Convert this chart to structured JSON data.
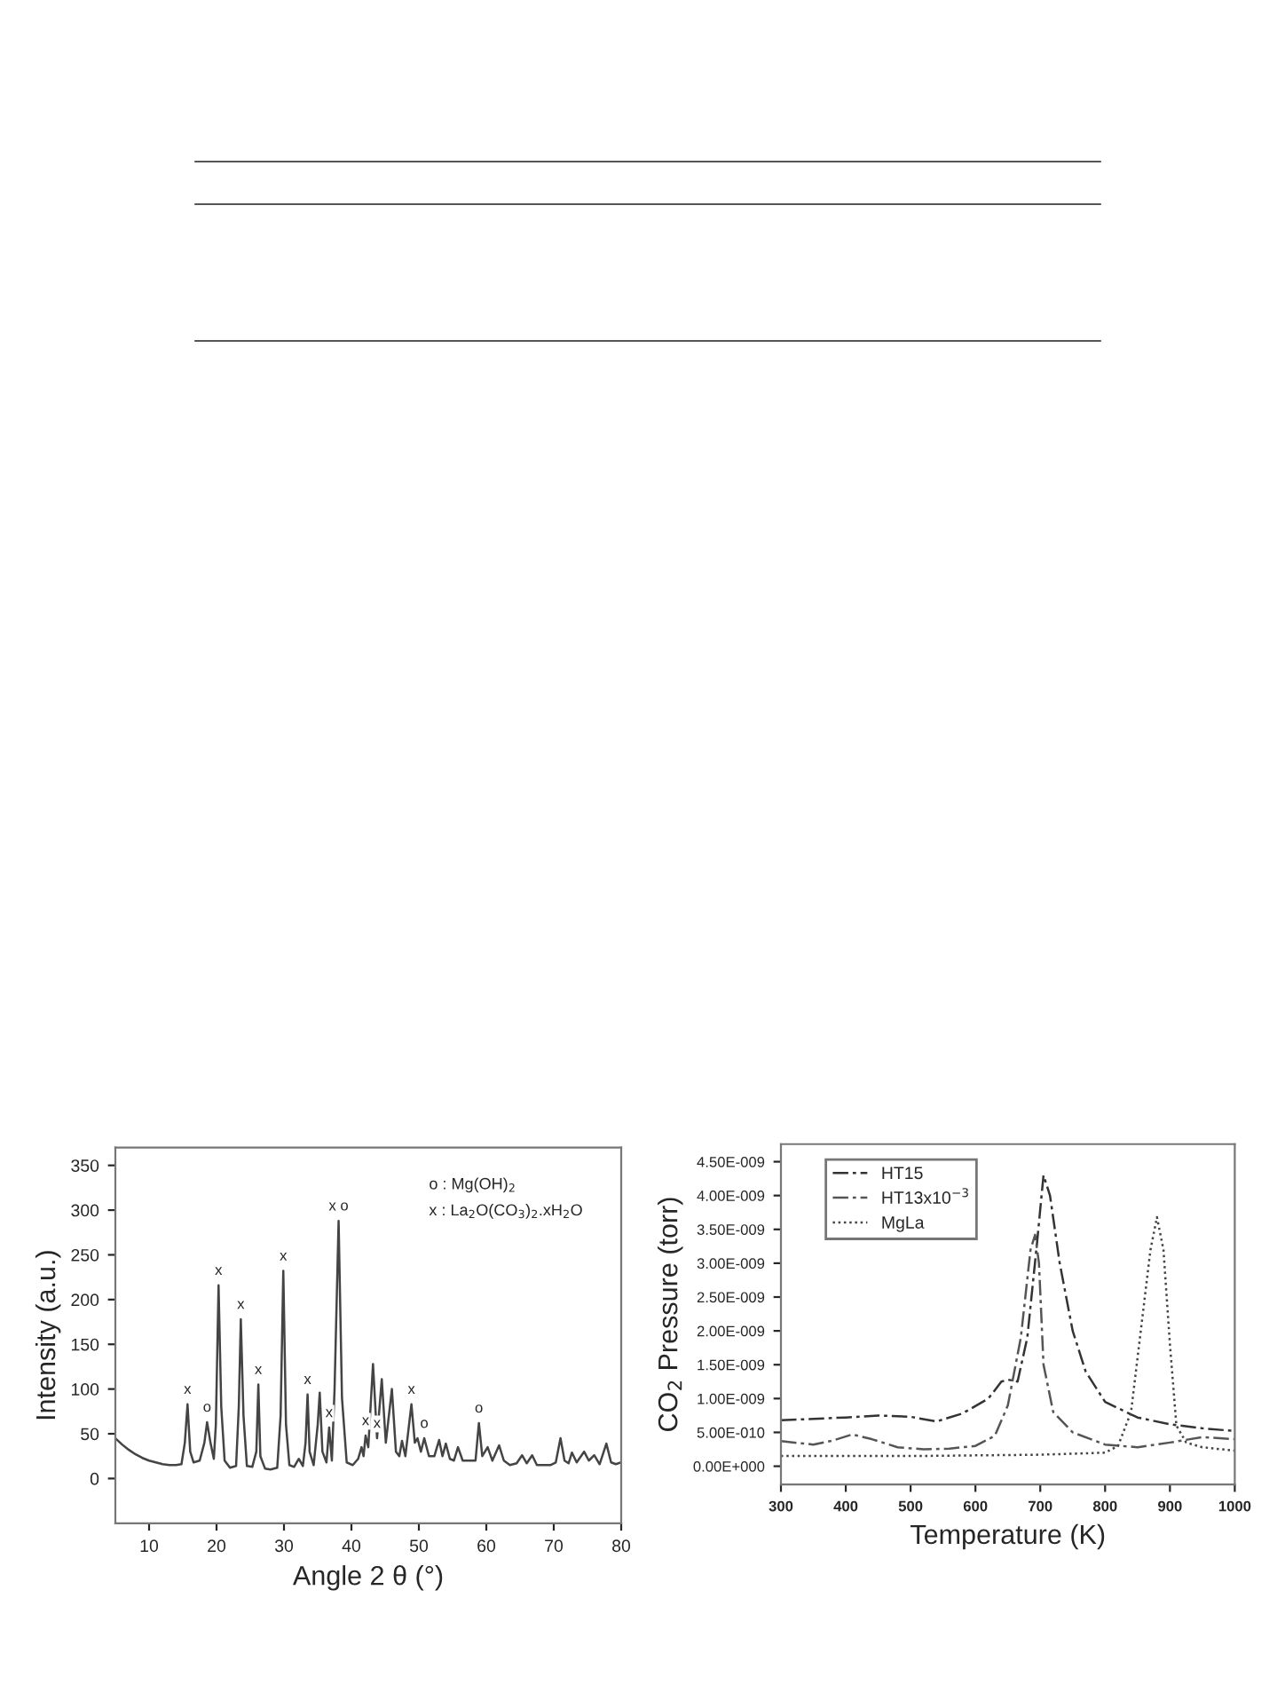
{
  "chart_data": [
    {
      "type": "line",
      "xlabel": "Angle 2 θ (°)",
      "ylabel": "Intensity (a.u.)",
      "xlim": [
        5,
        80
      ],
      "ylim": [
        -50,
        370
      ],
      "xticks": [
        10,
        20,
        30,
        40,
        50,
        60,
        70,
        80
      ],
      "yticks": [
        0,
        50,
        100,
        150,
        200,
        250,
        300,
        350
      ],
      "grid": false,
      "marker": "none",
      "annotations": [
        "o : Mg(OH)$_{2}$",
        "x : La$_{2}$O(CO$_{3}$)$_{2}$.xH$_{2}$O",
        {
          "text": "x",
          "x": 15.7,
          "y": 83
        },
        {
          "text": "o",
          "x": 18.6,
          "y": 63
        },
        {
          "text": "x",
          "x": 20.3,
          "y": 216
        },
        {
          "text": "x",
          "x": 23.6,
          "y": 178
        },
        {
          "text": "x",
          "x": 26.2,
          "y": 105
        },
        {
          "text": "x",
          "x": 29.9,
          "y": 232
        },
        {
          "text": "x",
          "x": 33.5,
          "y": 94
        },
        {
          "text": "x",
          "x": 36.7,
          "y": 57
        },
        {
          "text": "x o",
          "x": 38.1,
          "y": 288
        },
        {
          "text": "x",
          "x": 42.1,
          "y": 48
        },
        {
          "text": "x",
          "x": 43.8,
          "y": 45
        },
        {
          "text": "x",
          "x": 48.9,
          "y": 83
        },
        {
          "text": "o",
          "x": 50.8,
          "y": 45
        },
        {
          "text": "o",
          "x": 58.9,
          "y": 62
        }
      ],
      "series": [
        {
          "color": "#444444",
          "line_style": "solid",
          "x": [
            5,
            6,
            7,
            8,
            9,
            10,
            11,
            12,
            13,
            14,
            14.8,
            15.3,
            15.7,
            16.1,
            16.6,
            17.5,
            18.2,
            18.6,
            19.1,
            19.6,
            19.9,
            20.3,
            20.7,
            21.2,
            22,
            22.9,
            23.3,
            23.6,
            24,
            24.5,
            25.3,
            25.9,
            26.2,
            26.5,
            27.2,
            28,
            29,
            29.5,
            29.9,
            30.3,
            30.8,
            31.5,
            32.2,
            32.8,
            33.2,
            33.5,
            33.8,
            34.4,
            35,
            35.3,
            35.7,
            36.3,
            36.7,
            37.1,
            37.5,
            38.1,
            38.6,
            39.3,
            40.2,
            41,
            41.5,
            41.8,
            42.1,
            42.5,
            43.2,
            43.8,
            44.5,
            45.1,
            46,
            46.6,
            47.1,
            47.5,
            48,
            48.9,
            49.4,
            49.8,
            50.3,
            50.8,
            51.5,
            52.3,
            53,
            53.5,
            54,
            54.6,
            55.2,
            55.8,
            56.5,
            57.5,
            58.4,
            58.9,
            59.4,
            60.2,
            60.9,
            61.9,
            62.6,
            63.5,
            64.5,
            65.3,
            66,
            66.8,
            67.5,
            68.5,
            69.5,
            70.3,
            71,
            71.6,
            72.2,
            72.7,
            73.4,
            74.5,
            75.2,
            76,
            76.8,
            77.8,
            78.5,
            79.2,
            80
          ],
          "values": [
            45,
            38,
            32,
            27,
            23,
            20,
            18,
            16,
            15,
            15,
            16,
            40,
            83,
            30,
            18,
            20,
            40,
            63,
            40,
            22,
            60,
            216,
            80,
            20,
            12,
            14,
            80,
            178,
            70,
            14,
            13,
            30,
            105,
            25,
            11,
            10,
            12,
            70,
            232,
            60,
            15,
            13,
            22,
            14,
            40,
            94,
            30,
            15,
            60,
            96,
            30,
            18,
            57,
            20,
            100,
            288,
            90,
            18,
            15,
            22,
            35,
            25,
            48,
            35,
            128,
            45,
            111,
            40,
            100,
            30,
            25,
            42,
            25,
            83,
            40,
            45,
            30,
            45,
            25,
            25,
            43,
            25,
            39,
            22,
            20,
            35,
            20,
            20,
            20,
            62,
            25,
            35,
            20,
            37,
            20,
            15,
            17,
            26,
            17,
            26,
            15,
            15,
            15,
            18,
            45,
            20,
            17,
            29,
            18,
            30,
            20,
            26,
            16,
            39,
            18,
            16,
            18
          ]
        }
      ]
    },
    {
      "type": "line",
      "xlabel": "Temperature (K)",
      "ylabel": "CO$_{2}$ Pressure (torr)",
      "xlim": [
        300,
        1000
      ],
      "ylim": [
        -2.7e-10,
        4.76e-09
      ],
      "xticks": [
        300,
        400,
        500,
        600,
        700,
        800,
        900,
        1000
      ],
      "yticks": [
        {
          "value": 0,
          "label": "0.00E+000"
        },
        {
          "value": 5e-10,
          "label": "5.00E-010"
        },
        {
          "value": 1e-09,
          "label": "1.00E-009"
        },
        {
          "value": 1.5e-09,
          "label": "1.50E-009"
        },
        {
          "value": 2e-09,
          "label": "2.00E-009"
        },
        {
          "value": 2.5e-09,
          "label": "2.50E-009"
        },
        {
          "value": 3e-09,
          "label": "3.00E-009"
        },
        {
          "value": 3.5e-09,
          "label": "3.50E-009"
        },
        {
          "value": 4e-09,
          "label": "4.00E-009"
        },
        {
          "value": 4.5e-09,
          "label": "4.50E-009"
        }
      ],
      "grid": false,
      "legend": "top left",
      "marker": "none",
      "series": [
        {
          "name": "HT15",
          "color": "#333333",
          "line_style": "dashed",
          "x": [
            300,
            350,
            400,
            450,
            500,
            540,
            580,
            620,
            640,
            650,
            665,
            680,
            695,
            705,
            715,
            730,
            750,
            770,
            800,
            850,
            900,
            950,
            1000
          ],
          "values": [
            6.8e-10,
            7e-10,
            7.2e-10,
            7.5e-10,
            7.3e-10,
            6.6e-10,
            7.8e-10,
            1e-09,
            1.25e-09,
            1.28e-09,
            1.25e-09,
            1.9e-09,
            3.3e-09,
            4.3e-09,
            4e-09,
            3e-09,
            2e-09,
            1.4e-09,
            9.5e-10,
            7.2e-10,
            6.2e-10,
            5.6e-10,
            5.2e-10
          ]
        },
        {
          "name": "HT13x10$^{−3}$",
          "color": "#555555",
          "line_style": "dashed",
          "x": [
            300,
            350,
            380,
            410,
            440,
            480,
            520,
            560,
            600,
            630,
            650,
            670,
            685,
            692,
            698,
            705,
            720,
            750,
            800,
            850,
            900,
            950,
            1000
          ],
          "values": [
            3.7e-10,
            3.2e-10,
            3.8e-10,
            4.7e-10,
            4e-10,
            2.8e-10,
            2.5e-10,
            2.6e-10,
            3e-10,
            4.5e-10,
            9e-10,
            1.9e-09,
            3.2e-09,
            3.42e-09,
            3e-09,
            1.5e-09,
            8e-10,
            5e-10,
            3.2e-10,
            2.8e-10,
            3.5e-10,
            4.3e-10,
            4e-10
          ]
        },
        {
          "name": "MgLa",
          "color": "#444444",
          "line_style": "dotted",
          "x": [
            300,
            500,
            700,
            800,
            820,
            840,
            855,
            870,
            880,
            890,
            900,
            910,
            925,
            950,
            1000
          ],
          "values": [
            1.5e-10,
            1.5e-10,
            1.7e-10,
            2e-10,
            3e-10,
            8e-10,
            2e-09,
            3.2e-09,
            3.68e-09,
            3.2e-09,
            1.8e-09,
            6e-10,
            3.5e-10,
            2.8e-10,
            2.3e-10
          ]
        }
      ]
    }
  ]
}
